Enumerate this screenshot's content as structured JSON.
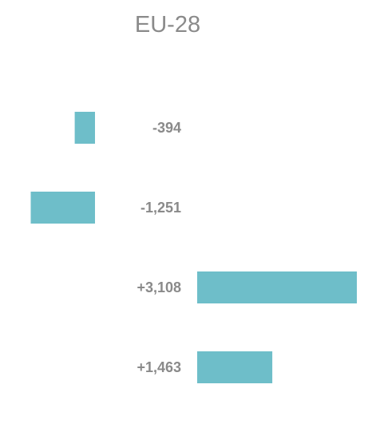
{
  "chart_data": {
    "type": "bar",
    "orientation": "horizontal",
    "title": "EU-28",
    "bar_color": "#6ebec9",
    "label_color": "#8a8a8a",
    "categories": [
      "",
      "",
      "",
      ""
    ],
    "values": [
      -394,
      -1251,
      3108,
      1463
    ],
    "value_labels": [
      "-394",
      "-1,251",
      "+3,108",
      "+1,463"
    ],
    "xlabel": "",
    "ylabel": "",
    "grid": false
  }
}
